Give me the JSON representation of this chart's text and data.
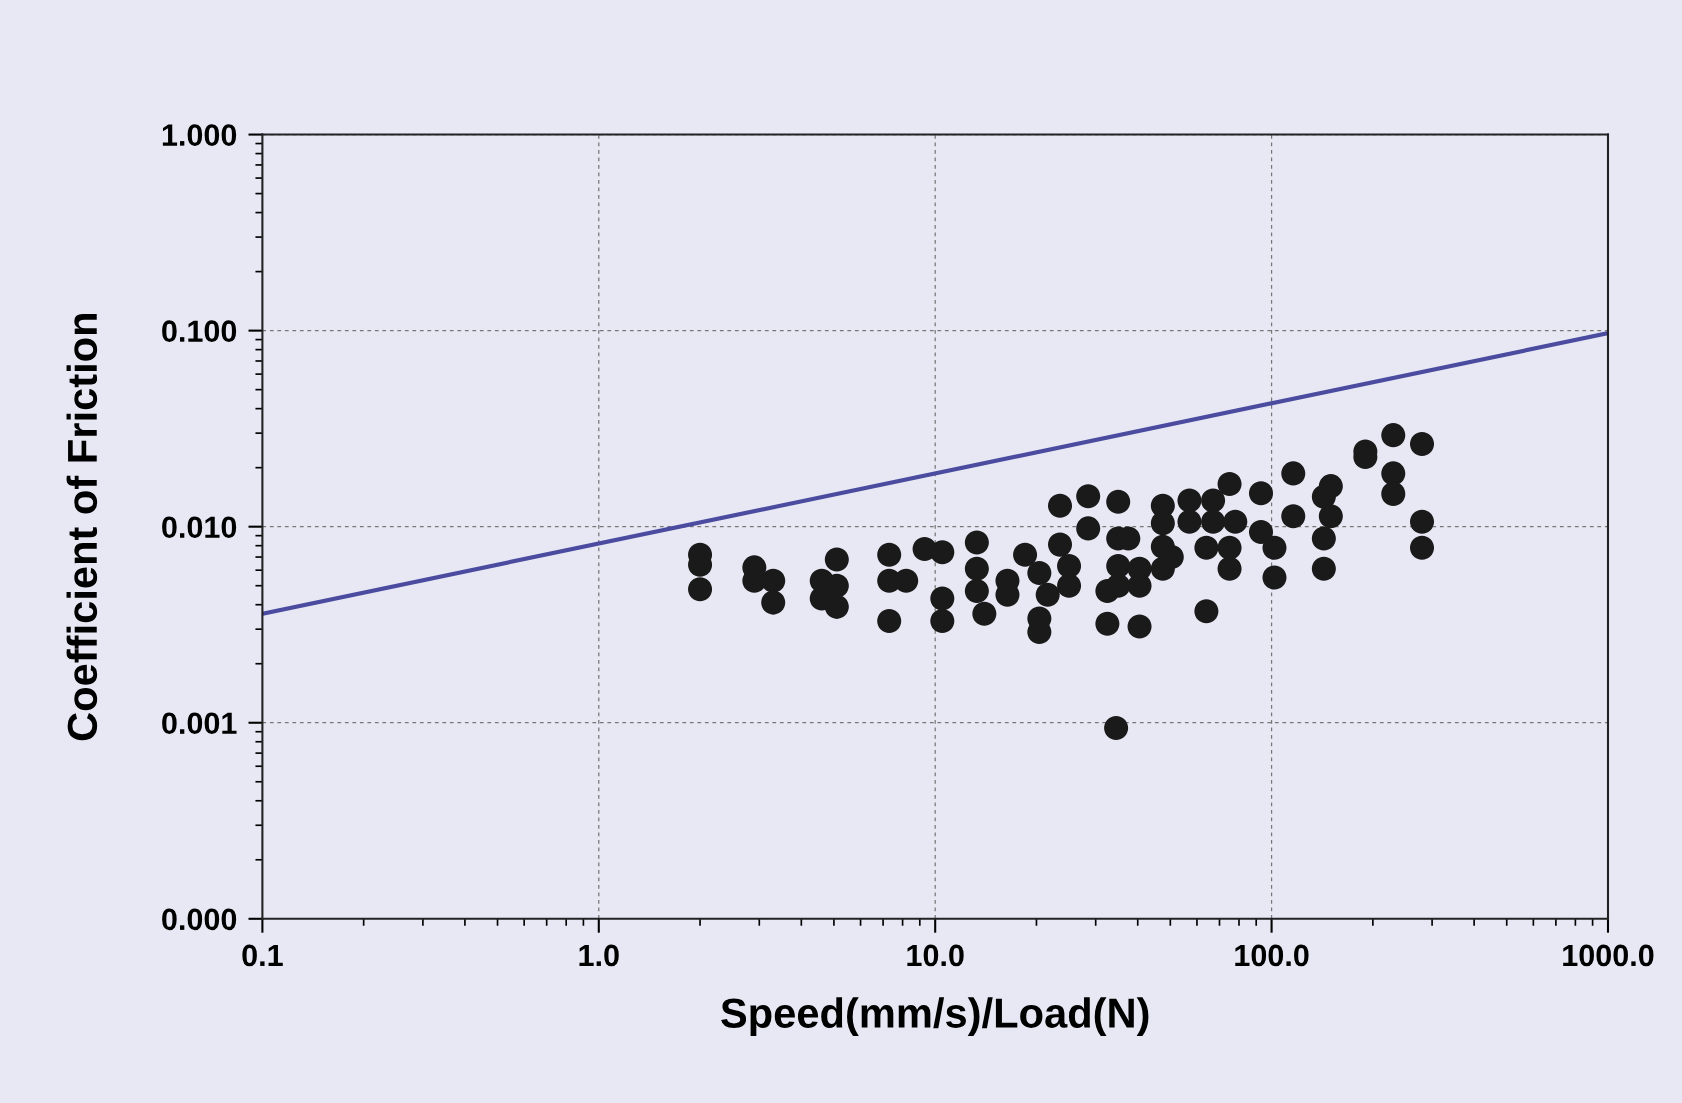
{
  "chart_data": {
    "type": "scatter",
    "xlabel": "Speed(mm/s)/Load(N)",
    "ylabel": "Coefficient of Friction",
    "log": "xy",
    "grid": true,
    "xlim": [
      0.1,
      1000
    ],
    "ylim": [
      0.0001,
      1
    ],
    "xticks": [
      {
        "value": 0.1,
        "label": "0.1"
      },
      {
        "value": 1,
        "label": "1.0"
      },
      {
        "value": 10,
        "label": "10.0"
      },
      {
        "value": 100,
        "label": "100.0"
      },
      {
        "value": 1000,
        "label": "1000.0"
      }
    ],
    "yticks": [
      {
        "value": 0.0001,
        "label": "0.000"
      },
      {
        "value": 0.001,
        "label": "0.001"
      },
      {
        "value": 0.01,
        "label": "0.010"
      },
      {
        "value": 0.1,
        "label": "0.100"
      },
      {
        "value": 1,
        "label": "1.000"
      }
    ],
    "series": [
      {
        "type": "line",
        "color": "#4b4ba0",
        "marker": "none",
        "line_style": "solid",
        "x": [
          0.1,
          1000
        ],
        "values": [
          0.0036,
          0.097
        ]
      },
      {
        "color": "#1a1a1a",
        "marker": "circle",
        "x": [
          2.0,
          2.0,
          2.0,
          2.9,
          2.9,
          3.3,
          3.3,
          4.6,
          4.6,
          5.1,
          5.1,
          5.1,
          7.3,
          7.3,
          7.3,
          8.2,
          9.3,
          10.5,
          10.5,
          10.5,
          13.3,
          13.3,
          13.3,
          14,
          16.4,
          16.4,
          18.5,
          20.4,
          20.4,
          20.4,
          21.6,
          23.5,
          23.5,
          25,
          25,
          28.5,
          28.5,
          32.5,
          32.5,
          34.5,
          35,
          35,
          35,
          35,
          37.5,
          40.5,
          40.5,
          40.5,
          47.5,
          47.5,
          47.5,
          47.5,
          50.5,
          57,
          57,
          64,
          64,
          67,
          67,
          75,
          75,
          75,
          78,
          93,
          93,
          102,
          102,
          116,
          116,
          143,
          143,
          143,
          150,
          150,
          190,
          190,
          230,
          230,
          230,
          280,
          280,
          280
        ],
        "values": [
          0.0072,
          0.0064,
          0.0048,
          0.0062,
          0.0053,
          0.0053,
          0.0041,
          0.0053,
          0.0043,
          0.0068,
          0.005,
          0.0039,
          0.0072,
          0.0053,
          0.0033,
          0.0053,
          0.0077,
          0.0074,
          0.0043,
          0.0033,
          0.0083,
          0.0061,
          0.0047,
          0.0036,
          0.0053,
          0.0045,
          0.0072,
          0.0058,
          0.0034,
          0.0029,
          0.0045,
          0.0128,
          0.0081,
          0.0063,
          0.005,
          0.0143,
          0.0098,
          0.0047,
          0.0032,
          0.00094,
          0.0134,
          0.0087,
          0.0063,
          0.005,
          0.0087,
          0.0061,
          0.005,
          0.0031,
          0.0128,
          0.0104,
          0.0079,
          0.0061,
          0.007,
          0.0136,
          0.0106,
          0.0078,
          0.0037,
          0.0136,
          0.0106,
          0.0165,
          0.0078,
          0.0061,
          0.0106,
          0.0148,
          0.0094,
          0.0078,
          0.0055,
          0.0187,
          0.0113,
          0.0142,
          0.0087,
          0.0061,
          0.0161,
          0.0113,
          0.0242,
          0.0227,
          0.0293,
          0.0187,
          0.0147,
          0.0264,
          0.0106,
          0.0078
        ]
      }
    ]
  }
}
